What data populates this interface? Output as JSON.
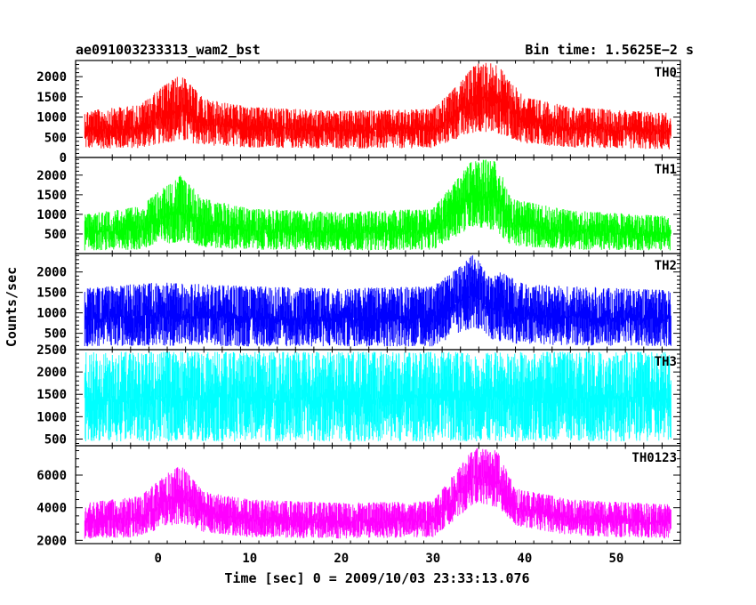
{
  "chart_data": {
    "type": "line",
    "title_left": "ae091003233313_wam2_bst",
    "title_right": "Bin time: 1.5625E−2 s",
    "xlabel": "Time [sec] 0 = 2009/10/03 23:33:13.076",
    "ylabel": "Counts/sec",
    "xlim": [
      -9,
      57
    ],
    "xticks": [
      0,
      10,
      20,
      30,
      40,
      50
    ],
    "grid": false,
    "panels": [
      {
        "name": "TH0",
        "color": "#ff0000",
        "ylim": [
          0,
          2400
        ],
        "yticks": [
          0,
          500,
          1000,
          1500,
          2000
        ],
        "profile": [
          {
            "t": -8,
            "low": 220,
            "high": 1150
          },
          {
            "t": -2,
            "low": 230,
            "high": 1300
          },
          {
            "t": 1,
            "low": 380,
            "high": 1850
          },
          {
            "t": 2.5,
            "low": 400,
            "high": 2050
          },
          {
            "t": 5,
            "low": 300,
            "high": 1450
          },
          {
            "t": 10,
            "low": 250,
            "high": 1250
          },
          {
            "t": 20,
            "low": 220,
            "high": 1150
          },
          {
            "t": 30,
            "low": 230,
            "high": 1200
          },
          {
            "t": 32.5,
            "low": 450,
            "high": 1750
          },
          {
            "t": 35,
            "low": 650,
            "high": 2400
          },
          {
            "t": 37,
            "low": 600,
            "high": 2300
          },
          {
            "t": 40,
            "low": 350,
            "high": 1500
          },
          {
            "t": 45,
            "low": 250,
            "high": 1250
          },
          {
            "t": 56,
            "low": 200,
            "high": 1100
          }
        ]
      },
      {
        "name": "TH1",
        "color": "#00ff00",
        "ylim": [
          0,
          2450
        ],
        "yticks": [
          500,
          1000,
          1500,
          2000
        ],
        "profile": [
          {
            "t": -8,
            "low": 80,
            "high": 1000
          },
          {
            "t": -2,
            "low": 100,
            "high": 1200
          },
          {
            "t": 1,
            "low": 250,
            "high": 1750
          },
          {
            "t": 2.5,
            "low": 300,
            "high": 2000
          },
          {
            "t": 5,
            "low": 150,
            "high": 1400
          },
          {
            "t": 10,
            "low": 100,
            "high": 1150
          },
          {
            "t": 20,
            "low": 80,
            "high": 1050
          },
          {
            "t": 30,
            "low": 100,
            "high": 1150
          },
          {
            "t": 33,
            "low": 500,
            "high": 2000
          },
          {
            "t": 34.5,
            "low": 700,
            "high": 2450
          },
          {
            "t": 37,
            "low": 550,
            "high": 2350
          },
          {
            "t": 38.5,
            "low": 200,
            "high": 1400
          },
          {
            "t": 45,
            "low": 100,
            "high": 1100
          },
          {
            "t": 56,
            "low": 80,
            "high": 950
          }
        ]
      },
      {
        "name": "TH2",
        "color": "#0000ff",
        "ylim": [
          100,
          2450
        ],
        "yticks": [
          500,
          1000,
          1500,
          2000
        ],
        "profile": [
          {
            "t": -8,
            "low": 180,
            "high": 1600
          },
          {
            "t": 0,
            "low": 200,
            "high": 1750
          },
          {
            "t": 10,
            "low": 180,
            "high": 1650
          },
          {
            "t": 20,
            "low": 180,
            "high": 1600
          },
          {
            "t": 30,
            "low": 180,
            "high": 1650
          },
          {
            "t": 33,
            "low": 500,
            "high": 2150
          },
          {
            "t": 34.5,
            "low": 650,
            "high": 2450
          },
          {
            "t": 36,
            "low": 350,
            "high": 1900
          },
          {
            "t": 37.5,
            "low": 300,
            "high": 2000
          },
          {
            "t": 40,
            "low": 220,
            "high": 1700
          },
          {
            "t": 56,
            "low": 180,
            "high": 1550
          }
        ]
      },
      {
        "name": "TH3",
        "color": "#00ffff",
        "ylim": [
          350,
          2500
        ],
        "yticks": [
          500,
          1000,
          1500,
          2000,
          2500
        ],
        "profile": [
          {
            "t": -8,
            "low": 450,
            "high": 2450
          },
          {
            "t": 56,
            "low": 450,
            "high": 2450
          }
        ]
      },
      {
        "name": "TH0123",
        "color": "#ff00ff",
        "ylim": [
          1800,
          7800
        ],
        "yticks": [
          2000,
          4000,
          6000
        ],
        "profile": [
          {
            "t": -8,
            "low": 2100,
            "high": 4300
          },
          {
            "t": -2,
            "low": 2200,
            "high": 4700
          },
          {
            "t": 1,
            "low": 2900,
            "high": 6100
          },
          {
            "t": 2.5,
            "low": 3000,
            "high": 6600
          },
          {
            "t": 5,
            "low": 2500,
            "high": 5000
          },
          {
            "t": 10,
            "low": 2200,
            "high": 4500
          },
          {
            "t": 20,
            "low": 2100,
            "high": 4300
          },
          {
            "t": 30,
            "low": 2200,
            "high": 4400
          },
          {
            "t": 32.5,
            "low": 3300,
            "high": 6200
          },
          {
            "t": 34.5,
            "low": 4300,
            "high": 7700
          },
          {
            "t": 37,
            "low": 4000,
            "high": 7500
          },
          {
            "t": 39,
            "low": 2900,
            "high": 5200
          },
          {
            "t": 45,
            "low": 2300,
            "high": 4500
          },
          {
            "t": 56,
            "low": 2100,
            "high": 4200
          }
        ]
      }
    ]
  }
}
